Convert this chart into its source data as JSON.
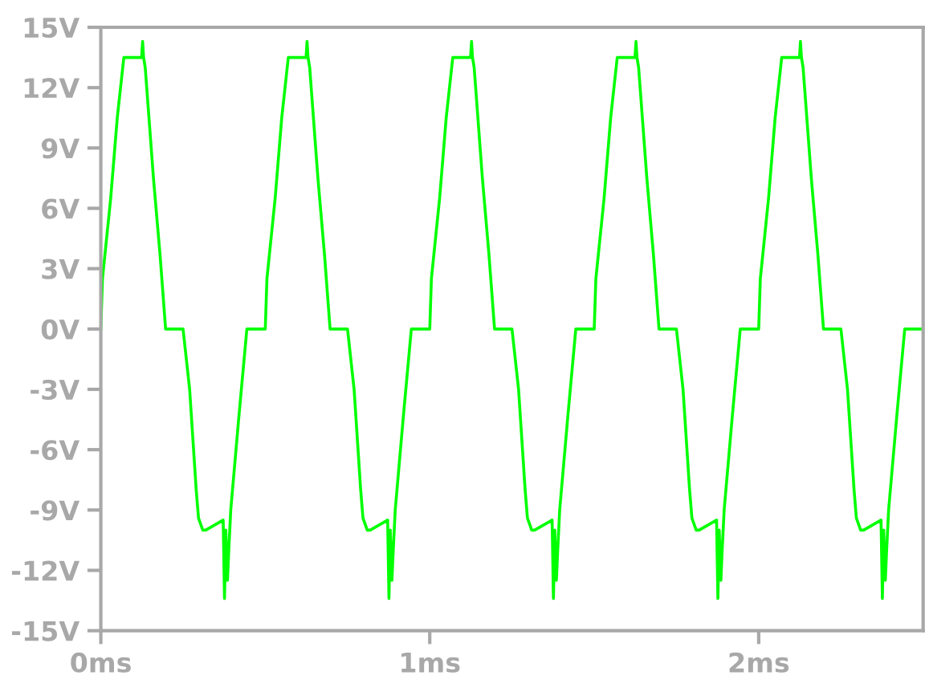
{
  "chart_data": {
    "type": "line",
    "color": "#00ff00",
    "grid": false,
    "legend": false,
    "marker": "none",
    "line_style": "solid",
    "xlim": [
      0,
      2.5
    ],
    "ylim": [
      -15,
      15
    ],
    "xticks": [
      {
        "value": 0,
        "label": "0ms"
      },
      {
        "value": 1,
        "label": "1ms"
      },
      {
        "value": 2,
        "label": "2ms"
      }
    ],
    "yticks": [
      {
        "value": -15,
        "label": "-15V"
      },
      {
        "value": -12,
        "label": "-12V"
      },
      {
        "value": -9,
        "label": "-9V"
      },
      {
        "value": -6,
        "label": "-6V"
      },
      {
        "value": -3,
        "label": "-3V"
      },
      {
        "value": 0,
        "label": "0V"
      },
      {
        "value": 3,
        "label": "3V"
      },
      {
        "value": 6,
        "label": "6V"
      },
      {
        "value": 9,
        "label": "9V"
      },
      {
        "value": 12,
        "label": "12V"
      },
      {
        "value": 15,
        "label": "15V"
      }
    ],
    "x": [
      0,
      0.005,
      0.03,
      0.05,
      0.07,
      0.124,
      0.127,
      0.13,
      0.135,
      0.16,
      0.18,
      0.197,
      0.25,
      0.27,
      0.29,
      0.297,
      0.31,
      0.319,
      0.372,
      0.376,
      0.38,
      0.385,
      0.389,
      0.395,
      0.42,
      0.444,
      0.5,
      0.505,
      0.53,
      0.55,
      0.57,
      0.624,
      0.627,
      0.63,
      0.635,
      0.66,
      0.68,
      0.697,
      0.75,
      0.77,
      0.79,
      0.797,
      0.81,
      0.819,
      0.872,
      0.876,
      0.88,
      0.885,
      0.889,
      0.895,
      0.92,
      0.944,
      1,
      1.005,
      1.03,
      1.05,
      1.07,
      1.124,
      1.127,
      1.13,
      1.135,
      1.16,
      1.18,
      1.197,
      1.25,
      1.27,
      1.29,
      1.297,
      1.31,
      1.319,
      1.372,
      1.376,
      1.38,
      1.385,
      1.389,
      1.395,
      1.42,
      1.444,
      1.5,
      1.505,
      1.53,
      1.55,
      1.57,
      1.624,
      1.627,
      1.63,
      1.635,
      1.66,
      1.68,
      1.697,
      1.75,
      1.77,
      1.79,
      1.797,
      1.81,
      1.819,
      1.872,
      1.876,
      1.88,
      1.885,
      1.889,
      1.895,
      1.92,
      1.944,
      2,
      2.005,
      2.03,
      2.05,
      2.07,
      2.124,
      2.127,
      2.13,
      2.135,
      2.16,
      2.18,
      2.197,
      2.25,
      2.27,
      2.29,
      2.297,
      2.31,
      2.319,
      2.372,
      2.376,
      2.38,
      2.385,
      2.389,
      2.395,
      2.42,
      2.444,
      2.5
    ],
    "values": [
      0,
      2.5,
      6.5,
      10.5,
      13.5,
      13.5,
      14.3,
      13.5,
      13,
      7.5,
      3.7,
      0,
      0,
      -3,
      -8,
      -9.4,
      -10,
      -10,
      -9.5,
      -13.4,
      -10,
      -12.5,
      -11,
      -9,
      -4.3,
      0,
      0,
      2.5,
      6.5,
      10.5,
      13.5,
      13.5,
      14.3,
      13.5,
      13,
      7.5,
      3.7,
      0,
      0,
      -3,
      -8,
      -9.4,
      -10,
      -10,
      -9.5,
      -13.4,
      -10,
      -12.5,
      -11,
      -9,
      -4.3,
      0,
      0,
      2.5,
      6.5,
      10.5,
      13.5,
      13.5,
      14.3,
      13.5,
      13,
      7.5,
      3.7,
      0,
      0,
      -3,
      -8,
      -9.4,
      -10,
      -10,
      -9.5,
      -13.4,
      -10,
      -12.5,
      -11,
      -9,
      -4.3,
      0,
      0,
      2.5,
      6.5,
      10.5,
      13.5,
      13.5,
      14.3,
      13.5,
      13,
      7.5,
      3.7,
      0,
      0,
      -3,
      -8,
      -9.4,
      -10,
      -10,
      -9.5,
      -13.4,
      -10,
      -12.5,
      -11,
      -9,
      -4.3,
      0,
      0,
      2.5,
      6.5,
      10.5,
      13.5,
      13.5,
      14.3,
      13.5,
      13,
      7.5,
      3.7,
      0,
      0,
      -3,
      -8,
      -9.4,
      -10,
      -10,
      -9.5,
      -13.4,
      -10,
      -12.5,
      -11,
      -9,
      -4.3,
      0,
      0
    ]
  }
}
